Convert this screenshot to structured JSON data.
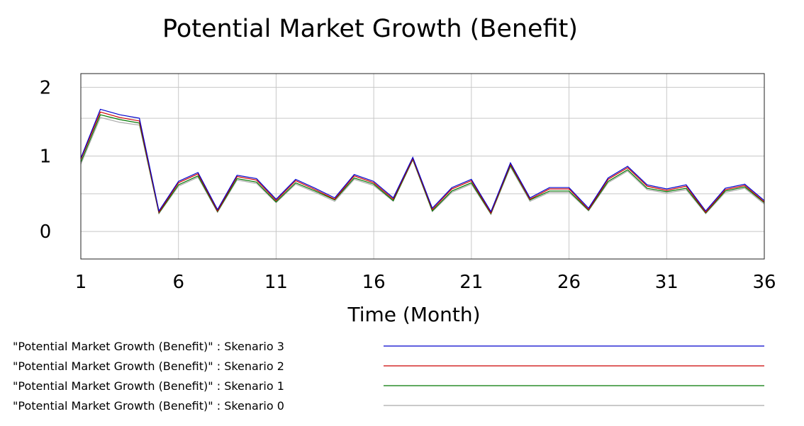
{
  "chart_data": {
    "type": "line",
    "title": "Potential Market Growth (Benefit)",
    "xlabel": "Time (Month)",
    "ylabel": "",
    "xlim": [
      1,
      36
    ],
    "ylim": [
      -0.4,
      2.3
    ],
    "x_ticks": [
      "1",
      "6",
      "11",
      "16",
      "21",
      "26",
      "31",
      "36"
    ],
    "y_ticks": [
      "0",
      "1",
      "2"
    ],
    "y_tick_values": [
      0,
      1.1,
      2.1
    ],
    "grid": true,
    "legend_position": "bottom",
    "x": [
      1,
      2,
      3,
      4,
      5,
      6,
      7,
      8,
      9,
      10,
      11,
      12,
      13,
      14,
      15,
      16,
      17,
      18,
      19,
      20,
      21,
      22,
      23,
      24,
      25,
      26,
      27,
      28,
      29,
      30,
      31,
      32,
      33,
      34,
      35,
      36
    ],
    "series": [
      {
        "name": "\"Potential Market Growth (Benefit)\" : Skenario 3",
        "color": "#0000cc",
        "values": [
          1.07,
          1.78,
          1.7,
          1.65,
          0.3,
          0.73,
          0.86,
          0.32,
          0.82,
          0.77,
          0.47,
          0.76,
          0.63,
          0.49,
          0.83,
          0.73,
          0.49,
          1.08,
          0.34,
          0.64,
          0.76,
          0.29,
          1.0,
          0.49,
          0.64,
          0.64,
          0.34,
          0.78,
          0.95,
          0.68,
          0.62,
          0.68,
          0.3,
          0.63,
          0.69,
          0.45
        ]
      },
      {
        "name": "\"Potential Market Growth (Benefit)\" : Skenario 2",
        "color": "#cc0000",
        "values": [
          1.05,
          1.74,
          1.66,
          1.61,
          0.28,
          0.71,
          0.84,
          0.3,
          0.8,
          0.75,
          0.45,
          0.74,
          0.61,
          0.47,
          0.81,
          0.71,
          0.47,
          1.06,
          0.32,
          0.62,
          0.74,
          0.27,
          0.98,
          0.47,
          0.62,
          0.62,
          0.32,
          0.76,
          0.93,
          0.66,
          0.6,
          0.66,
          0.28,
          0.61,
          0.67,
          0.43
        ]
      },
      {
        "name": "\"Potential Market Growth (Benefit)\" : Skenario 1",
        "color": "#007700",
        "values": [
          1.01,
          1.7,
          1.63,
          1.58,
          0.27,
          0.68,
          0.81,
          0.29,
          0.77,
          0.72,
          0.43,
          0.71,
          0.59,
          0.46,
          0.78,
          0.69,
          0.45,
          1.05,
          0.3,
          0.59,
          0.71,
          0.26,
          0.96,
          0.46,
          0.59,
          0.59,
          0.31,
          0.73,
          0.9,
          0.63,
          0.58,
          0.63,
          0.27,
          0.59,
          0.65,
          0.42
        ]
      },
      {
        "name": "\"Potential Market Growth (Benefit)\" : Skenario 0",
        "color": "#aaaaaa",
        "values": [
          0.98,
          1.66,
          1.59,
          1.55,
          0.26,
          0.66,
          0.79,
          0.28,
          0.75,
          0.7,
          0.42,
          0.69,
          0.57,
          0.44,
          0.76,
          0.67,
          0.44,
          1.04,
          0.29,
          0.57,
          0.69,
          0.25,
          0.94,
          0.44,
          0.57,
          0.57,
          0.3,
          0.71,
          0.88,
          0.61,
          0.56,
          0.61,
          0.26,
          0.57,
          0.63,
          0.4
        ]
      }
    ]
  }
}
